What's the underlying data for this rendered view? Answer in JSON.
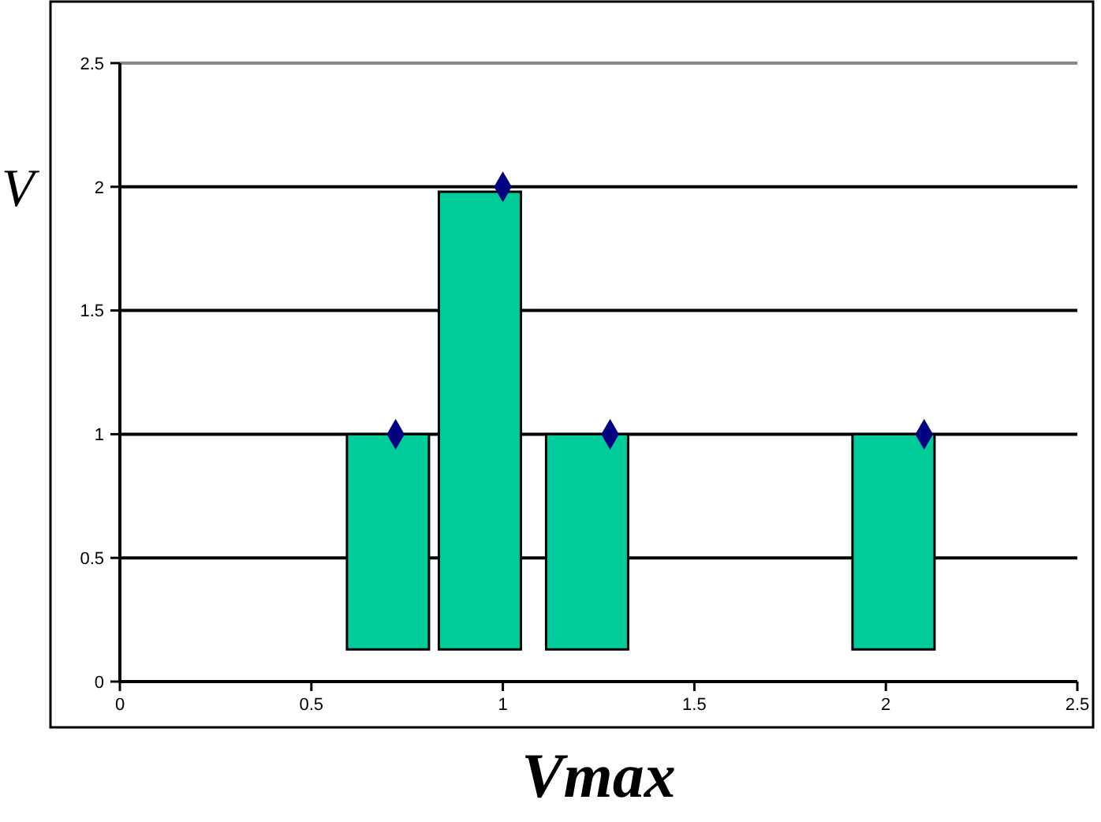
{
  "chart_data": {
    "type": "bar",
    "xlabel": "Vmax",
    "ylabel": "V",
    "xlim": [
      0,
      2.5
    ],
    "ylim": [
      0,
      2.5
    ],
    "xticks": [
      0,
      0.5,
      1,
      1.5,
      2,
      2.5
    ],
    "yticks": [
      0,
      0.5,
      1,
      1.5,
      2,
      2.5
    ],
    "grid": "y",
    "series": [
      {
        "color": "#00cc99",
        "x": [
          0.7,
          0.94,
          1.22,
          2.02
        ],
        "base": [
          0.13,
          0.13,
          0.13,
          0.13
        ],
        "values": [
          0.87,
          1.85,
          0.87,
          0.87
        ]
      },
      {
        "type": "scatter",
        "color": "#000080",
        "marker": "diamond",
        "x": [
          0.72,
          1.0,
          1.28,
          2.1
        ],
        "values": [
          1,
          2,
          1,
          1
        ]
      }
    ]
  }
}
